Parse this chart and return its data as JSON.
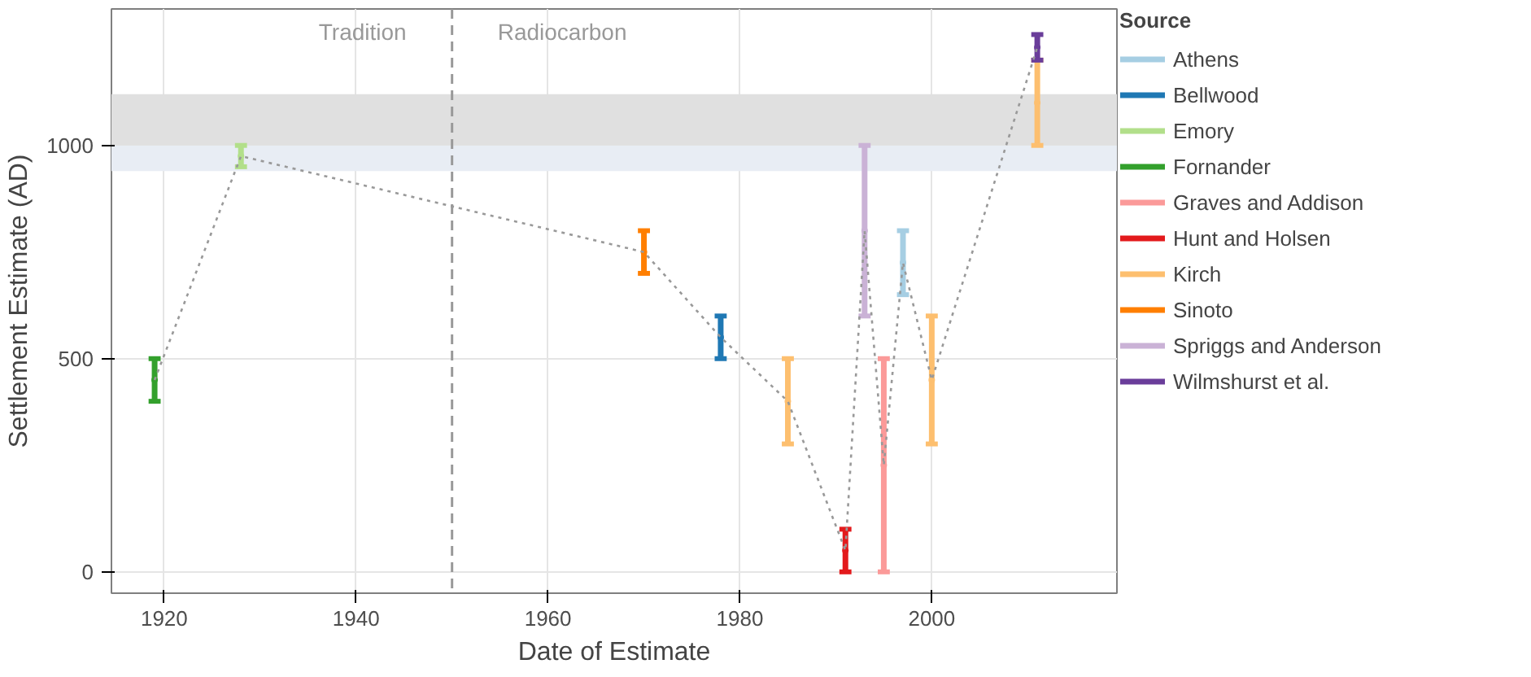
{
  "chart_data": {
    "type": "scatter",
    "xlabel": "Date of Estimate",
    "ylabel": "Settlement Estimate (AD)",
    "legend_title": "Source",
    "legend": "right",
    "grid": true,
    "marker": "circle",
    "xlim": [
      1914.5,
      2019.3
    ],
    "ylim": [
      -50,
      1320
    ],
    "xticks": [
      1920,
      1940,
      1960,
      1980,
      2000
    ],
    "yticks": [
      0,
      500,
      1000
    ],
    "series": [
      {
        "name": "Athens",
        "color": "#a6cee3",
        "x": [
          1997
        ],
        "values": [
          725
        ],
        "errors": [
          [
            650,
            800
          ]
        ]
      },
      {
        "name": "Bellwood",
        "color": "#1f78b4",
        "x": [
          1978
        ],
        "values": [
          550
        ],
        "errors": [
          [
            500,
            600
          ]
        ]
      },
      {
        "name": "Emory",
        "color": "#b2df8a",
        "x": [
          1928
        ],
        "values": [
          975
        ],
        "errors": [
          [
            950,
            1000
          ]
        ]
      },
      {
        "name": "Fornander",
        "color": "#33a02c",
        "x": [
          1919
        ],
        "values": [
          450
        ],
        "errors": [
          [
            400,
            500
          ]
        ]
      },
      {
        "name": "Graves and Addison",
        "color": "#fb9a99",
        "x": [
          1995
        ],
        "values": [
          250
        ],
        "errors": [
          [
            0,
            500
          ]
        ]
      },
      {
        "name": "Hunt and Holsen",
        "color": "#e31a1c",
        "x": [
          1991
        ],
        "values": [
          50
        ],
        "errors": [
          [
            0,
            100
          ]
        ]
      },
      {
        "name": "Kirch",
        "color": "#fdbf6f",
        "x": [
          1985,
          2000,
          2011
        ],
        "values": [
          400,
          450,
          1100
        ],
        "errors": [
          [
            300,
            500
          ],
          [
            300,
            600
          ],
          [
            1000,
            1200
          ]
        ]
      },
      {
        "name": "Sinoto",
        "color": "#ff7f00",
        "x": [
          1970
        ],
        "values": [
          750
        ],
        "errors": [
          [
            700,
            800
          ]
        ]
      },
      {
        "name": "Spriggs and Anderson",
        "color": "#cab2d6",
        "x": [
          1993
        ],
        "values": [
          800
        ],
        "errors": [
          [
            600,
            1000
          ]
        ]
      },
      {
        "name": "Wilmshurst et al.",
        "color": "#6a3d9a",
        "x": [
          2011
        ],
        "values": [
          1230
        ],
        "errors": [
          [
            1200,
            1260
          ]
        ]
      },
      {
        "type": "line",
        "color": "#999999",
        "line_style": "dotted",
        "marker": "none",
        "x": [
          1919,
          1928,
          1970,
          1978,
          1985,
          1991,
          1993,
          1995,
          1997,
          2000,
          2011
        ],
        "values": [
          450,
          975,
          750,
          550,
          400,
          50,
          800,
          250,
          725,
          450,
          1230
        ]
      }
    ],
    "ref_lines": [
      {
        "axis": "x",
        "value": 1950,
        "color": "#999999",
        "line_style": "dashed"
      }
    ],
    "bands": [
      {
        "axis": "y",
        "from": 940,
        "to": 1000,
        "color": "#e8edf4"
      },
      {
        "axis": "y",
        "from": 1000,
        "to": 1120,
        "color": "#e0e0e0"
      }
    ],
    "annotations": [
      "Tradition",
      "Radiocarbon"
    ]
  }
}
